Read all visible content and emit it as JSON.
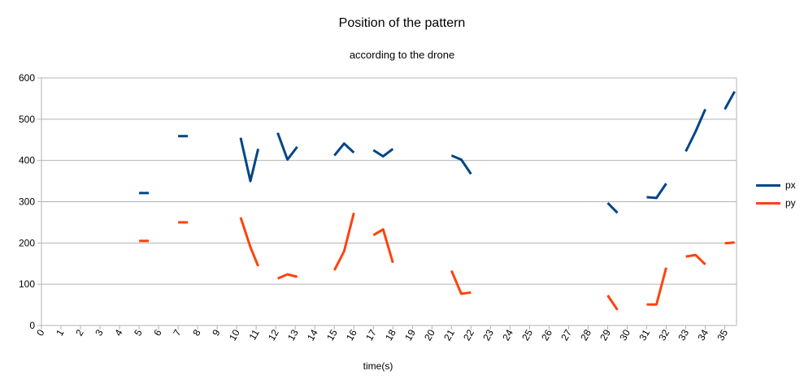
{
  "chart_data": {
    "type": "line",
    "title": "Position of the pattern",
    "subtitle": "according to the drone",
    "xlabel": "time(s)",
    "ylabel": "",
    "xlim": [
      0,
      35.6
    ],
    "ylim": [
      0,
      600
    ],
    "x_ticks": [
      0,
      1,
      2,
      3,
      4,
      5,
      6,
      7,
      8,
      9,
      10,
      11,
      12,
      13,
      14,
      15,
      16,
      17,
      18,
      19,
      20,
      21,
      22,
      23,
      24,
      25,
      26,
      27,
      28,
      29,
      30,
      31,
      32,
      33,
      34,
      35
    ],
    "y_ticks": [
      0,
      100,
      200,
      300,
      400,
      500,
      600
    ],
    "grid": "horizontal",
    "legend_position": "right",
    "series": [
      {
        "name": "px",
        "color": "#004586",
        "segments": [
          [
            [
              5.0,
              321
            ],
            [
              5.5,
              321
            ]
          ],
          [
            [
              7.0,
              459
            ],
            [
              7.5,
              459
            ]
          ],
          [
            [
              10.2,
              455
            ],
            [
              10.7,
              350
            ],
            [
              11.1,
              428
            ]
          ],
          [
            [
              12.1,
              467
            ],
            [
              12.6,
              402
            ],
            [
              13.1,
              433
            ]
          ],
          [
            [
              15.0,
              412
            ],
            [
              15.5,
              441
            ],
            [
              16.0,
              419
            ]
          ],
          [
            [
              17.0,
              425
            ],
            [
              17.5,
              410
            ],
            [
              18.0,
              428
            ]
          ],
          [
            [
              21.0,
              412
            ],
            [
              21.5,
              402
            ],
            [
              22.0,
              367
            ]
          ],
          [
            [
              29.0,
              297
            ],
            [
              29.5,
              273
            ]
          ],
          [
            [
              31.0,
              311
            ],
            [
              31.5,
              309
            ],
            [
              32.0,
              344
            ]
          ],
          [
            [
              33.0,
              422
            ],
            [
              33.5,
              470
            ],
            [
              34.0,
              524
            ]
          ],
          [
            [
              35.0,
              524
            ],
            [
              35.5,
              567
            ]
          ]
        ]
      },
      {
        "name": "py",
        "color": "#ff420e",
        "segments": [
          [
            [
              5.0,
              205
            ],
            [
              5.5,
              205
            ]
          ],
          [
            [
              7.0,
              250
            ],
            [
              7.5,
              250
            ]
          ],
          [
            [
              10.2,
              262
            ],
            [
              10.7,
              190
            ],
            [
              11.1,
              144
            ]
          ],
          [
            [
              12.1,
              114
            ],
            [
              12.6,
              124
            ],
            [
              13.1,
              118
            ]
          ],
          [
            [
              15.0,
              134
            ],
            [
              15.5,
              180
            ],
            [
              16.0,
              273
            ]
          ],
          [
            [
              17.0,
              219
            ],
            [
              17.5,
              233
            ],
            [
              18.0,
              152
            ]
          ],
          [
            [
              21.0,
              133
            ],
            [
              21.5,
              77
            ],
            [
              22.0,
              80
            ]
          ],
          [
            [
              29.0,
              73
            ],
            [
              29.5,
              38
            ]
          ],
          [
            [
              31.0,
              51
            ],
            [
              31.5,
              51
            ],
            [
              32.0,
              140
            ]
          ],
          [
            [
              33.0,
              167
            ],
            [
              33.5,
              171
            ],
            [
              34.0,
              148
            ]
          ],
          [
            [
              35.0,
              199
            ],
            [
              35.5,
              201
            ]
          ]
        ]
      }
    ]
  }
}
